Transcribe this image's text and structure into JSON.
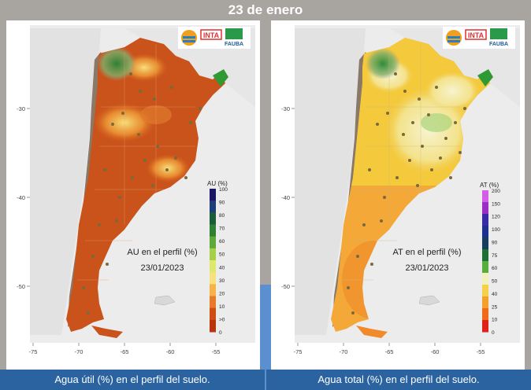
{
  "header": {
    "title": "23 de enero"
  },
  "maps": [
    {
      "id": "au",
      "logos": {
        "inta": "INTA",
        "fauba": "FAUBA"
      },
      "legend": {
        "title": "AU (%)",
        "ticks": [
          "100",
          "90",
          "80",
          "70",
          "60",
          "50",
          "40",
          "30",
          "20",
          "10",
          ">0",
          "0"
        ],
        "colors": [
          "#1a1464",
          "#1e3c78",
          "#1b5c3a",
          "#2f7f34",
          "#5fa93c",
          "#a7cf4a",
          "#dfe86a",
          "#f6e27c",
          "#f5b34a",
          "#e87b2a",
          "#cf4e14",
          "#b8360c"
        ]
      },
      "annotation": {
        "label": "AU en el perfil (%)",
        "date": "23/01/2023"
      },
      "axes": {
        "x_ticks": [
          "-75",
          "-70",
          "-65",
          "-60",
          "-55"
        ],
        "y_ticks": [
          "-30",
          "-40",
          "-50"
        ]
      },
      "caption": "Agua útil (%) en el perfil del suelo."
    },
    {
      "id": "at",
      "logos": {
        "inta": "INTA",
        "fauba": "FAUBA"
      },
      "legend": {
        "title": "AT (%)",
        "ticks": [
          "200",
          "150",
          "120",
          "100",
          "90",
          "75",
          "60",
          "50",
          "40",
          "25",
          "10",
          "0"
        ],
        "colors": [
          "#d25ee6",
          "#9a2fc8",
          "#3a2aa8",
          "#1e2f8e",
          "#173d5c",
          "#1f6e33",
          "#59ad3a",
          "#f1f1c0",
          "#f5d04a",
          "#f5a02a",
          "#ef6a1a",
          "#e0201a"
        ]
      },
      "annotation": {
        "label": "AT en el perfil (%)",
        "date": "23/01/2023"
      },
      "axes": {
        "x_ticks": [
          "-75",
          "-70",
          "-65",
          "-60",
          "-55"
        ],
        "y_ticks": [
          "-30",
          "-40",
          "-50"
        ]
      },
      "caption": "Agua total (%) en el perfil del suelo."
    }
  ]
}
